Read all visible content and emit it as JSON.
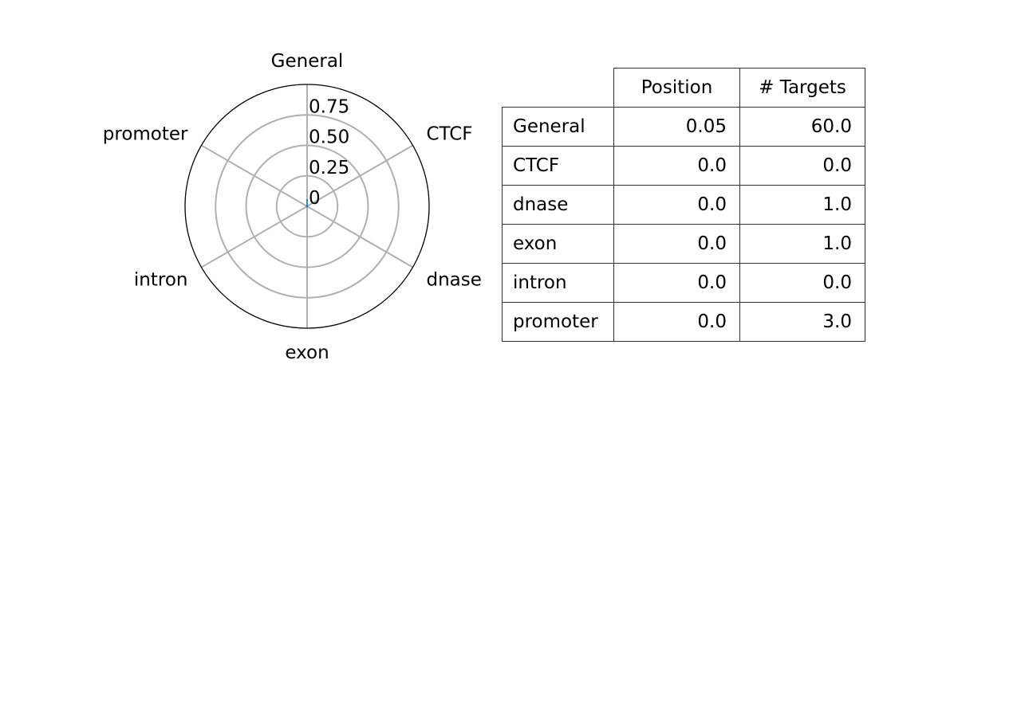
{
  "chart_data": [
    {
      "type": "radar",
      "categories": [
        "General",
        "CTCF",
        "dnase",
        "exon",
        "intron",
        "promoter"
      ],
      "series": [
        {
          "values": [
            0.05,
            0.0,
            0.0,
            0.0,
            0.0,
            0.0
          ]
        }
      ],
      "radial_ticks": [
        "0",
        "0.25",
        "0.50",
        "0.75"
      ],
      "radial_tick_values": [
        0,
        0.25,
        0.5,
        0.75
      ],
      "rlim": [
        0,
        1
      ],
      "grid": true,
      "colors": {
        "series": "#1f77b4",
        "grid": "#b0b0b0",
        "outline": "#000000"
      }
    },
    {
      "type": "table",
      "columns": [
        "Position",
        "# Targets"
      ],
      "rows": [
        {
          "label": "General",
          "values": [
            "0.05",
            "60.0"
          ]
        },
        {
          "label": "CTCF",
          "values": [
            "0.0",
            "0.0"
          ]
        },
        {
          "label": "dnase",
          "values": [
            "0.0",
            "1.0"
          ]
        },
        {
          "label": "exon",
          "values": [
            "0.0",
            "1.0"
          ]
        },
        {
          "label": "intron",
          "values": [
            "0.0",
            "0.0"
          ]
        },
        {
          "label": "promoter",
          "values": [
            "0.0",
            "3.0"
          ]
        }
      ]
    }
  ]
}
